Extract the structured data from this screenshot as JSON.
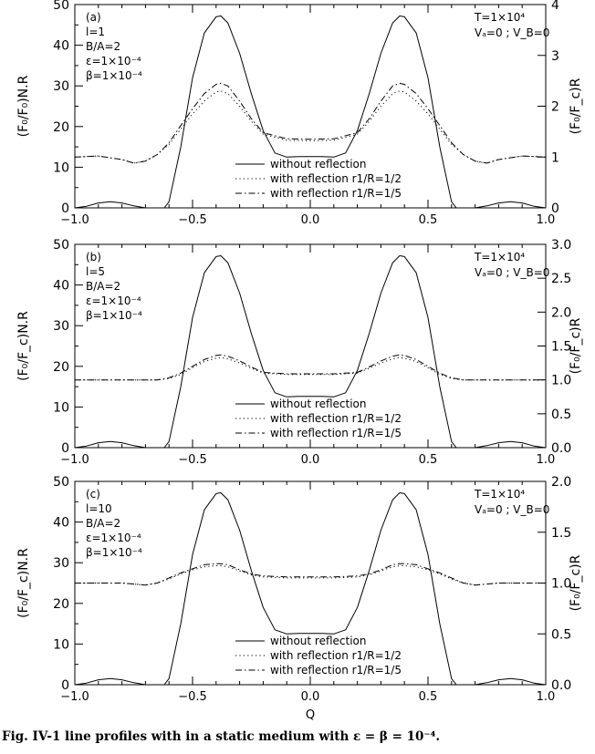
{
  "chart_data": [
    {
      "type": "line",
      "panel_label": "(a)",
      "params_left": [
        "l=1",
        "B/A=2",
        "ε=1×10⁻⁴",
        "β=1×10⁻⁴"
      ],
      "params_right": [
        "T=1×10⁴",
        "Vₐ=0 ; V_B=0"
      ],
      "ylabel_left": "(F₀/F₀)N.R",
      "ylabel_right": "(F₀/F_c)R",
      "xlabel": "",
      "xlim": [
        -1.0,
        1.0
      ],
      "ylim_left": [
        0,
        50
      ],
      "ylim_right": [
        0,
        4
      ],
      "x_ticks": [
        "−1.0",
        "−0.5",
        "0.0",
        "0.5",
        "1.0"
      ],
      "y_ticks_left": [
        "0",
        "10",
        "20",
        "30",
        "40",
        "50"
      ],
      "y_ticks_right": [
        "0",
        "1",
        "2",
        "3",
        "4"
      ],
      "y_tick_values_right": [
        0,
        1,
        2,
        3,
        4
      ],
      "legend": [
        "without reflection",
        "with reflection r1/R=1/2",
        "with reflection r1/R=1/5"
      ],
      "series": [
        {
          "axis": "left",
          "style": "solid",
          "x": [
            -1.0,
            -0.95,
            -0.9,
            -0.85,
            -0.8,
            -0.75,
            -0.7,
            -0.65,
            -0.62,
            -0.6,
            -0.55,
            -0.5,
            -0.45,
            -0.4,
            -0.38,
            -0.35,
            -0.3,
            -0.25,
            -0.2,
            -0.15,
            -0.1,
            -0.05,
            0.0,
            0.05,
            0.1,
            0.15,
            0.2,
            0.25,
            0.3,
            0.35,
            0.38,
            0.4,
            0.45,
            0.5,
            0.55,
            0.6,
            0.62,
            0.65,
            0.7,
            0.75,
            0.8,
            0.85,
            0.9,
            0.95,
            1.0
          ],
          "y": [
            0.0,
            0.4,
            1.2,
            1.5,
            1.2,
            0.5,
            0.0,
            0.0,
            0.0,
            1.5,
            15.0,
            32.0,
            43.0,
            47.0,
            47.2,
            45.5,
            38.0,
            28.0,
            19.0,
            13.5,
            12.5,
            12.6,
            12.6,
            12.6,
            12.5,
            13.5,
            19.0,
            28.0,
            38.0,
            45.5,
            47.2,
            47.0,
            43.0,
            32.0,
            15.0,
            1.5,
            0.0,
            0.0,
            0.0,
            0.5,
            1.2,
            1.5,
            1.2,
            0.4,
            0.0
          ]
        },
        {
          "axis": "right",
          "style": "dotted",
          "x": [
            -1.0,
            -0.9,
            -0.8,
            -0.75,
            -0.7,
            -0.65,
            -0.6,
            -0.55,
            -0.5,
            -0.45,
            -0.4,
            -0.38,
            -0.35,
            -0.3,
            -0.25,
            -0.2,
            -0.1,
            0.0,
            0.1,
            0.2,
            0.25,
            0.3,
            0.35,
            0.38,
            0.4,
            0.45,
            0.5,
            0.55,
            0.6,
            0.65,
            0.7,
            0.75,
            0.8,
            0.9,
            1.0
          ],
          "y": [
            1.0,
            1.02,
            0.95,
            0.88,
            0.92,
            1.05,
            1.25,
            1.55,
            1.85,
            2.1,
            2.28,
            2.3,
            2.25,
            2.0,
            1.7,
            1.45,
            1.33,
            1.32,
            1.33,
            1.45,
            1.7,
            2.0,
            2.25,
            2.3,
            2.28,
            2.1,
            1.85,
            1.55,
            1.25,
            1.05,
            0.92,
            0.88,
            0.95,
            1.02,
            1.0
          ]
        },
        {
          "axis": "right",
          "style": "dashdot",
          "x": [
            -1.0,
            -0.9,
            -0.8,
            -0.75,
            -0.7,
            -0.65,
            -0.6,
            -0.55,
            -0.5,
            -0.45,
            -0.4,
            -0.38,
            -0.35,
            -0.3,
            -0.25,
            -0.2,
            -0.1,
            0.0,
            0.1,
            0.2,
            0.25,
            0.3,
            0.35,
            0.38,
            0.4,
            0.45,
            0.5,
            0.55,
            0.6,
            0.65,
            0.7,
            0.75,
            0.8,
            0.9,
            1.0
          ],
          "y": [
            1.0,
            1.02,
            0.95,
            0.88,
            0.92,
            1.05,
            1.28,
            1.62,
            1.95,
            2.25,
            2.43,
            2.45,
            2.4,
            2.1,
            1.75,
            1.48,
            1.36,
            1.35,
            1.36,
            1.48,
            1.75,
            2.1,
            2.4,
            2.45,
            2.43,
            2.25,
            1.95,
            1.62,
            1.28,
            1.05,
            0.92,
            0.88,
            0.95,
            1.02,
            1.0
          ]
        }
      ]
    },
    {
      "type": "line",
      "panel_label": "(b)",
      "params_left": [
        "l=5",
        "B/A=2",
        "ε=1×10⁻⁴",
        "β=1×10⁻⁴"
      ],
      "params_right": [
        "T=1×10⁴",
        "Vₐ=0 ; V_B=0"
      ],
      "ylabel_left": "(F₀/F_c)N.R",
      "ylabel_right": "(F₀/F_c)R",
      "xlabel": "",
      "xlim": [
        -1.0,
        1.0
      ],
      "ylim_left": [
        0,
        50
      ],
      "ylim_right": [
        0,
        3
      ],
      "x_ticks": [
        "−1.0",
        "−0.5",
        "0.0",
        "0.5",
        "1.0"
      ],
      "y_ticks_left": [
        "0",
        "10",
        "20",
        "30",
        "40",
        "50"
      ],
      "y_ticks_right": [
        "0.0",
        "0.5",
        "1.0",
        "1.5",
        "2.0",
        "2.5",
        "3.0"
      ],
      "y_tick_values_right": [
        0,
        0.5,
        1.0,
        1.5,
        2.0,
        2.5,
        3.0
      ],
      "legend": [
        "without reflection",
        "with reflection r1/R=1/2",
        "with reflection r1/R=1/5"
      ],
      "series": [
        {
          "axis": "left",
          "style": "solid",
          "x": [
            -1.0,
            -0.95,
            -0.9,
            -0.85,
            -0.8,
            -0.75,
            -0.7,
            -0.65,
            -0.62,
            -0.6,
            -0.55,
            -0.5,
            -0.45,
            -0.4,
            -0.38,
            -0.35,
            -0.3,
            -0.25,
            -0.2,
            -0.15,
            -0.1,
            -0.05,
            0.0,
            0.05,
            0.1,
            0.15,
            0.2,
            0.25,
            0.3,
            0.35,
            0.38,
            0.4,
            0.45,
            0.5,
            0.55,
            0.6,
            0.62,
            0.65,
            0.7,
            0.75,
            0.8,
            0.85,
            0.9,
            0.95,
            1.0
          ],
          "y": [
            0.0,
            0.4,
            1.2,
            1.5,
            1.2,
            0.5,
            0.0,
            0.0,
            0.0,
            1.5,
            15.0,
            32.0,
            43.0,
            47.0,
            47.2,
            45.5,
            38.0,
            28.0,
            19.0,
            13.5,
            12.5,
            12.6,
            12.6,
            12.6,
            12.5,
            13.5,
            19.0,
            28.0,
            38.0,
            45.5,
            47.2,
            47.0,
            43.0,
            32.0,
            15.0,
            1.5,
            0.0,
            0.0,
            0.0,
            0.5,
            1.2,
            1.5,
            1.2,
            0.4,
            0.0
          ]
        },
        {
          "axis": "right",
          "style": "dotted",
          "x": [
            -1.0,
            -0.9,
            -0.8,
            -0.7,
            -0.65,
            -0.6,
            -0.55,
            -0.5,
            -0.45,
            -0.4,
            -0.38,
            -0.35,
            -0.3,
            -0.25,
            -0.2,
            -0.1,
            0.0,
            0.1,
            0.2,
            0.25,
            0.3,
            0.35,
            0.38,
            0.4,
            0.45,
            0.5,
            0.55,
            0.6,
            0.65,
            0.7,
            0.8,
            0.9,
            1.0
          ],
          "y": [
            1.0,
            1.0,
            1.0,
            1.0,
            1.0,
            1.02,
            1.08,
            1.18,
            1.27,
            1.32,
            1.33,
            1.31,
            1.25,
            1.17,
            1.1,
            1.08,
            1.08,
            1.08,
            1.1,
            1.17,
            1.25,
            1.31,
            1.33,
            1.32,
            1.27,
            1.18,
            1.08,
            1.02,
            1.0,
            1.0,
            1.0,
            1.0,
            1.0
          ]
        },
        {
          "axis": "right",
          "style": "dashdot",
          "x": [
            -1.0,
            -0.9,
            -0.8,
            -0.7,
            -0.65,
            -0.6,
            -0.55,
            -0.5,
            -0.45,
            -0.4,
            -0.38,
            -0.35,
            -0.3,
            -0.25,
            -0.2,
            -0.1,
            0.0,
            0.1,
            0.2,
            0.25,
            0.3,
            0.35,
            0.38,
            0.4,
            0.45,
            0.5,
            0.55,
            0.6,
            0.65,
            0.7,
            0.8,
            0.9,
            1.0
          ],
          "y": [
            1.0,
            1.0,
            1.0,
            1.0,
            1.0,
            1.03,
            1.1,
            1.2,
            1.3,
            1.36,
            1.37,
            1.35,
            1.28,
            1.19,
            1.11,
            1.09,
            1.09,
            1.09,
            1.11,
            1.19,
            1.28,
            1.35,
            1.37,
            1.36,
            1.3,
            1.2,
            1.1,
            1.03,
            1.0,
            1.0,
            1.0,
            1.0,
            1.0
          ]
        }
      ]
    },
    {
      "type": "line",
      "panel_label": "(c)",
      "params_left": [
        "l=10",
        "B/A=2",
        "ε=1×10⁻⁴",
        "β=1×10⁻⁴"
      ],
      "params_right": [
        "T=1×10⁴",
        "Vₐ=0 ; V_B=0"
      ],
      "ylabel_left": "(F₀/F_c)N.R",
      "ylabel_right": "(F₀/F_c)R",
      "xlabel": "Q",
      "xlim": [
        -1.0,
        1.0
      ],
      "ylim_left": [
        0,
        50
      ],
      "ylim_right": [
        0,
        2
      ],
      "x_ticks": [
        "−1.0",
        "−0.5",
        "0.0",
        "0.5",
        "1.0"
      ],
      "y_ticks_left": [
        "0",
        "10",
        "20",
        "30",
        "40",
        "50"
      ],
      "y_ticks_right": [
        "0.0",
        "0.5",
        "1.0",
        "1.5",
        "2.0"
      ],
      "y_tick_values_right": [
        0,
        0.5,
        1.0,
        1.5,
        2.0
      ],
      "legend": [
        "without reflection",
        "with reflection r1/R=1/2",
        "with reflection r1/R=1/5"
      ],
      "series": [
        {
          "axis": "left",
          "style": "solid",
          "x": [
            -1.0,
            -0.95,
            -0.9,
            -0.85,
            -0.8,
            -0.75,
            -0.7,
            -0.65,
            -0.62,
            -0.6,
            -0.55,
            -0.5,
            -0.45,
            -0.4,
            -0.38,
            -0.35,
            -0.3,
            -0.25,
            -0.2,
            -0.15,
            -0.1,
            -0.05,
            0.0,
            0.05,
            0.1,
            0.15,
            0.2,
            0.25,
            0.3,
            0.35,
            0.38,
            0.4,
            0.45,
            0.5,
            0.55,
            0.6,
            0.62,
            0.65,
            0.7,
            0.75,
            0.8,
            0.85,
            0.9,
            0.95,
            1.0
          ],
          "y": [
            0.0,
            0.4,
            1.2,
            1.5,
            1.2,
            0.5,
            0.0,
            0.0,
            0.0,
            1.5,
            15.0,
            32.0,
            43.0,
            47.0,
            47.2,
            45.5,
            38.0,
            28.0,
            19.0,
            13.5,
            12.5,
            12.6,
            12.6,
            12.6,
            12.5,
            13.5,
            19.0,
            28.0,
            38.0,
            45.5,
            47.2,
            47.0,
            43.0,
            32.0,
            15.0,
            1.5,
            0.0,
            0.0,
            0.0,
            0.5,
            1.2,
            1.5,
            1.2,
            0.4,
            0.0
          ]
        },
        {
          "axis": "right",
          "style": "dotted",
          "x": [
            -1.0,
            -0.9,
            -0.8,
            -0.75,
            -0.7,
            -0.65,
            -0.6,
            -0.55,
            -0.5,
            -0.45,
            -0.4,
            -0.38,
            -0.35,
            -0.3,
            -0.25,
            -0.2,
            -0.1,
            0.0,
            0.1,
            0.2,
            0.25,
            0.3,
            0.35,
            0.38,
            0.4,
            0.45,
            0.5,
            0.55,
            0.6,
            0.65,
            0.7,
            0.75,
            0.8,
            0.9,
            1.0
          ],
          "y": [
            1.0,
            1.0,
            1.0,
            0.99,
            0.98,
            1.0,
            1.04,
            1.09,
            1.13,
            1.16,
            1.17,
            1.17,
            1.16,
            1.12,
            1.08,
            1.06,
            1.05,
            1.05,
            1.05,
            1.06,
            1.08,
            1.12,
            1.16,
            1.17,
            1.17,
            1.16,
            1.13,
            1.09,
            1.04,
            1.0,
            0.98,
            0.99,
            1.0,
            1.0,
            1.0
          ]
        },
        {
          "axis": "right",
          "style": "dashdot",
          "x": [
            -1.0,
            -0.9,
            -0.8,
            -0.75,
            -0.7,
            -0.65,
            -0.6,
            -0.55,
            -0.5,
            -0.45,
            -0.4,
            -0.38,
            -0.35,
            -0.3,
            -0.25,
            -0.2,
            -0.1,
            0.0,
            0.1,
            0.2,
            0.25,
            0.3,
            0.35,
            0.38,
            0.4,
            0.45,
            0.5,
            0.55,
            0.6,
            0.65,
            0.7,
            0.75,
            0.8,
            0.9,
            1.0
          ],
          "y": [
            1.0,
            1.0,
            1.0,
            0.99,
            0.98,
            1.0,
            1.05,
            1.1,
            1.14,
            1.18,
            1.19,
            1.19,
            1.18,
            1.13,
            1.09,
            1.07,
            1.06,
            1.06,
            1.06,
            1.07,
            1.09,
            1.13,
            1.18,
            1.19,
            1.19,
            1.18,
            1.14,
            1.1,
            1.05,
            1.0,
            0.98,
            0.99,
            1.0,
            1.0,
            1.0
          ]
        }
      ]
    }
  ],
  "caption": "Fig. IV-1 line profiles with in a static medium with ε = β = 10⁻⁴."
}
